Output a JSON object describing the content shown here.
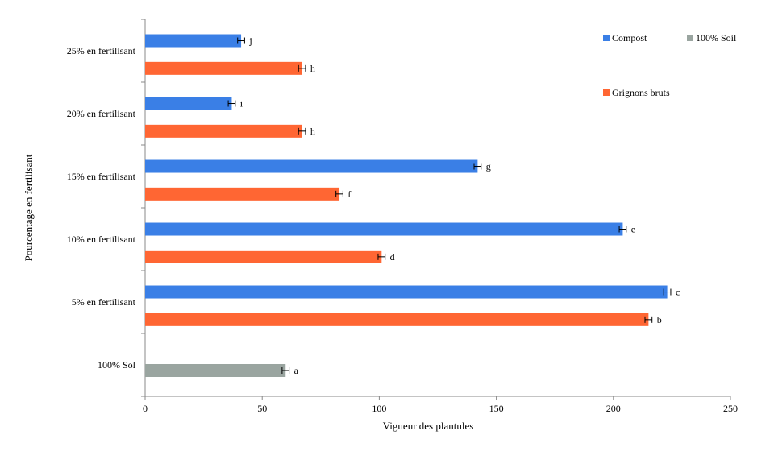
{
  "chart_data": {
    "type": "bar",
    "orientation": "horizontal",
    "xlabel": "Vigueur des plantules",
    "ylabel": "Pourcentage en fertilisant",
    "xlim": [
      0,
      250
    ],
    "xticks": [
      0,
      50,
      100,
      150,
      200,
      250
    ],
    "grid": false,
    "legend_placement": "top-right",
    "categories": [
      "25% en fertilisant",
      "20% en fertilisant",
      "15% en fertilisant",
      "10% en fertilisant",
      "5% en fertilisant",
      "100% Sol"
    ],
    "series": [
      {
        "name": "Compost",
        "color": "#3a7fe6",
        "values": [
          41,
          37,
          142,
          204,
          223,
          null
        ],
        "labels": [
          "j",
          "i",
          "g",
          "e",
          "c",
          ""
        ],
        "error": [
          1.5,
          1.5,
          1.5,
          1.5,
          1.5,
          null
        ]
      },
      {
        "name": "Grignons bruts",
        "color": "#ff6633",
        "values": [
          67,
          67,
          83,
          101,
          215,
          null
        ],
        "labels": [
          "h",
          "h",
          "f",
          "d",
          "b",
          ""
        ],
        "error": [
          1.5,
          1.5,
          1.5,
          1.5,
          1.5,
          null
        ]
      },
      {
        "name": "100% Soil",
        "color": "#9aa5a0",
        "values": [
          null,
          null,
          null,
          null,
          null,
          60
        ],
        "labels": [
          "",
          "",
          "",
          "",
          "",
          "a"
        ],
        "error": [
          null,
          null,
          null,
          null,
          null,
          1.5
        ]
      }
    ]
  }
}
